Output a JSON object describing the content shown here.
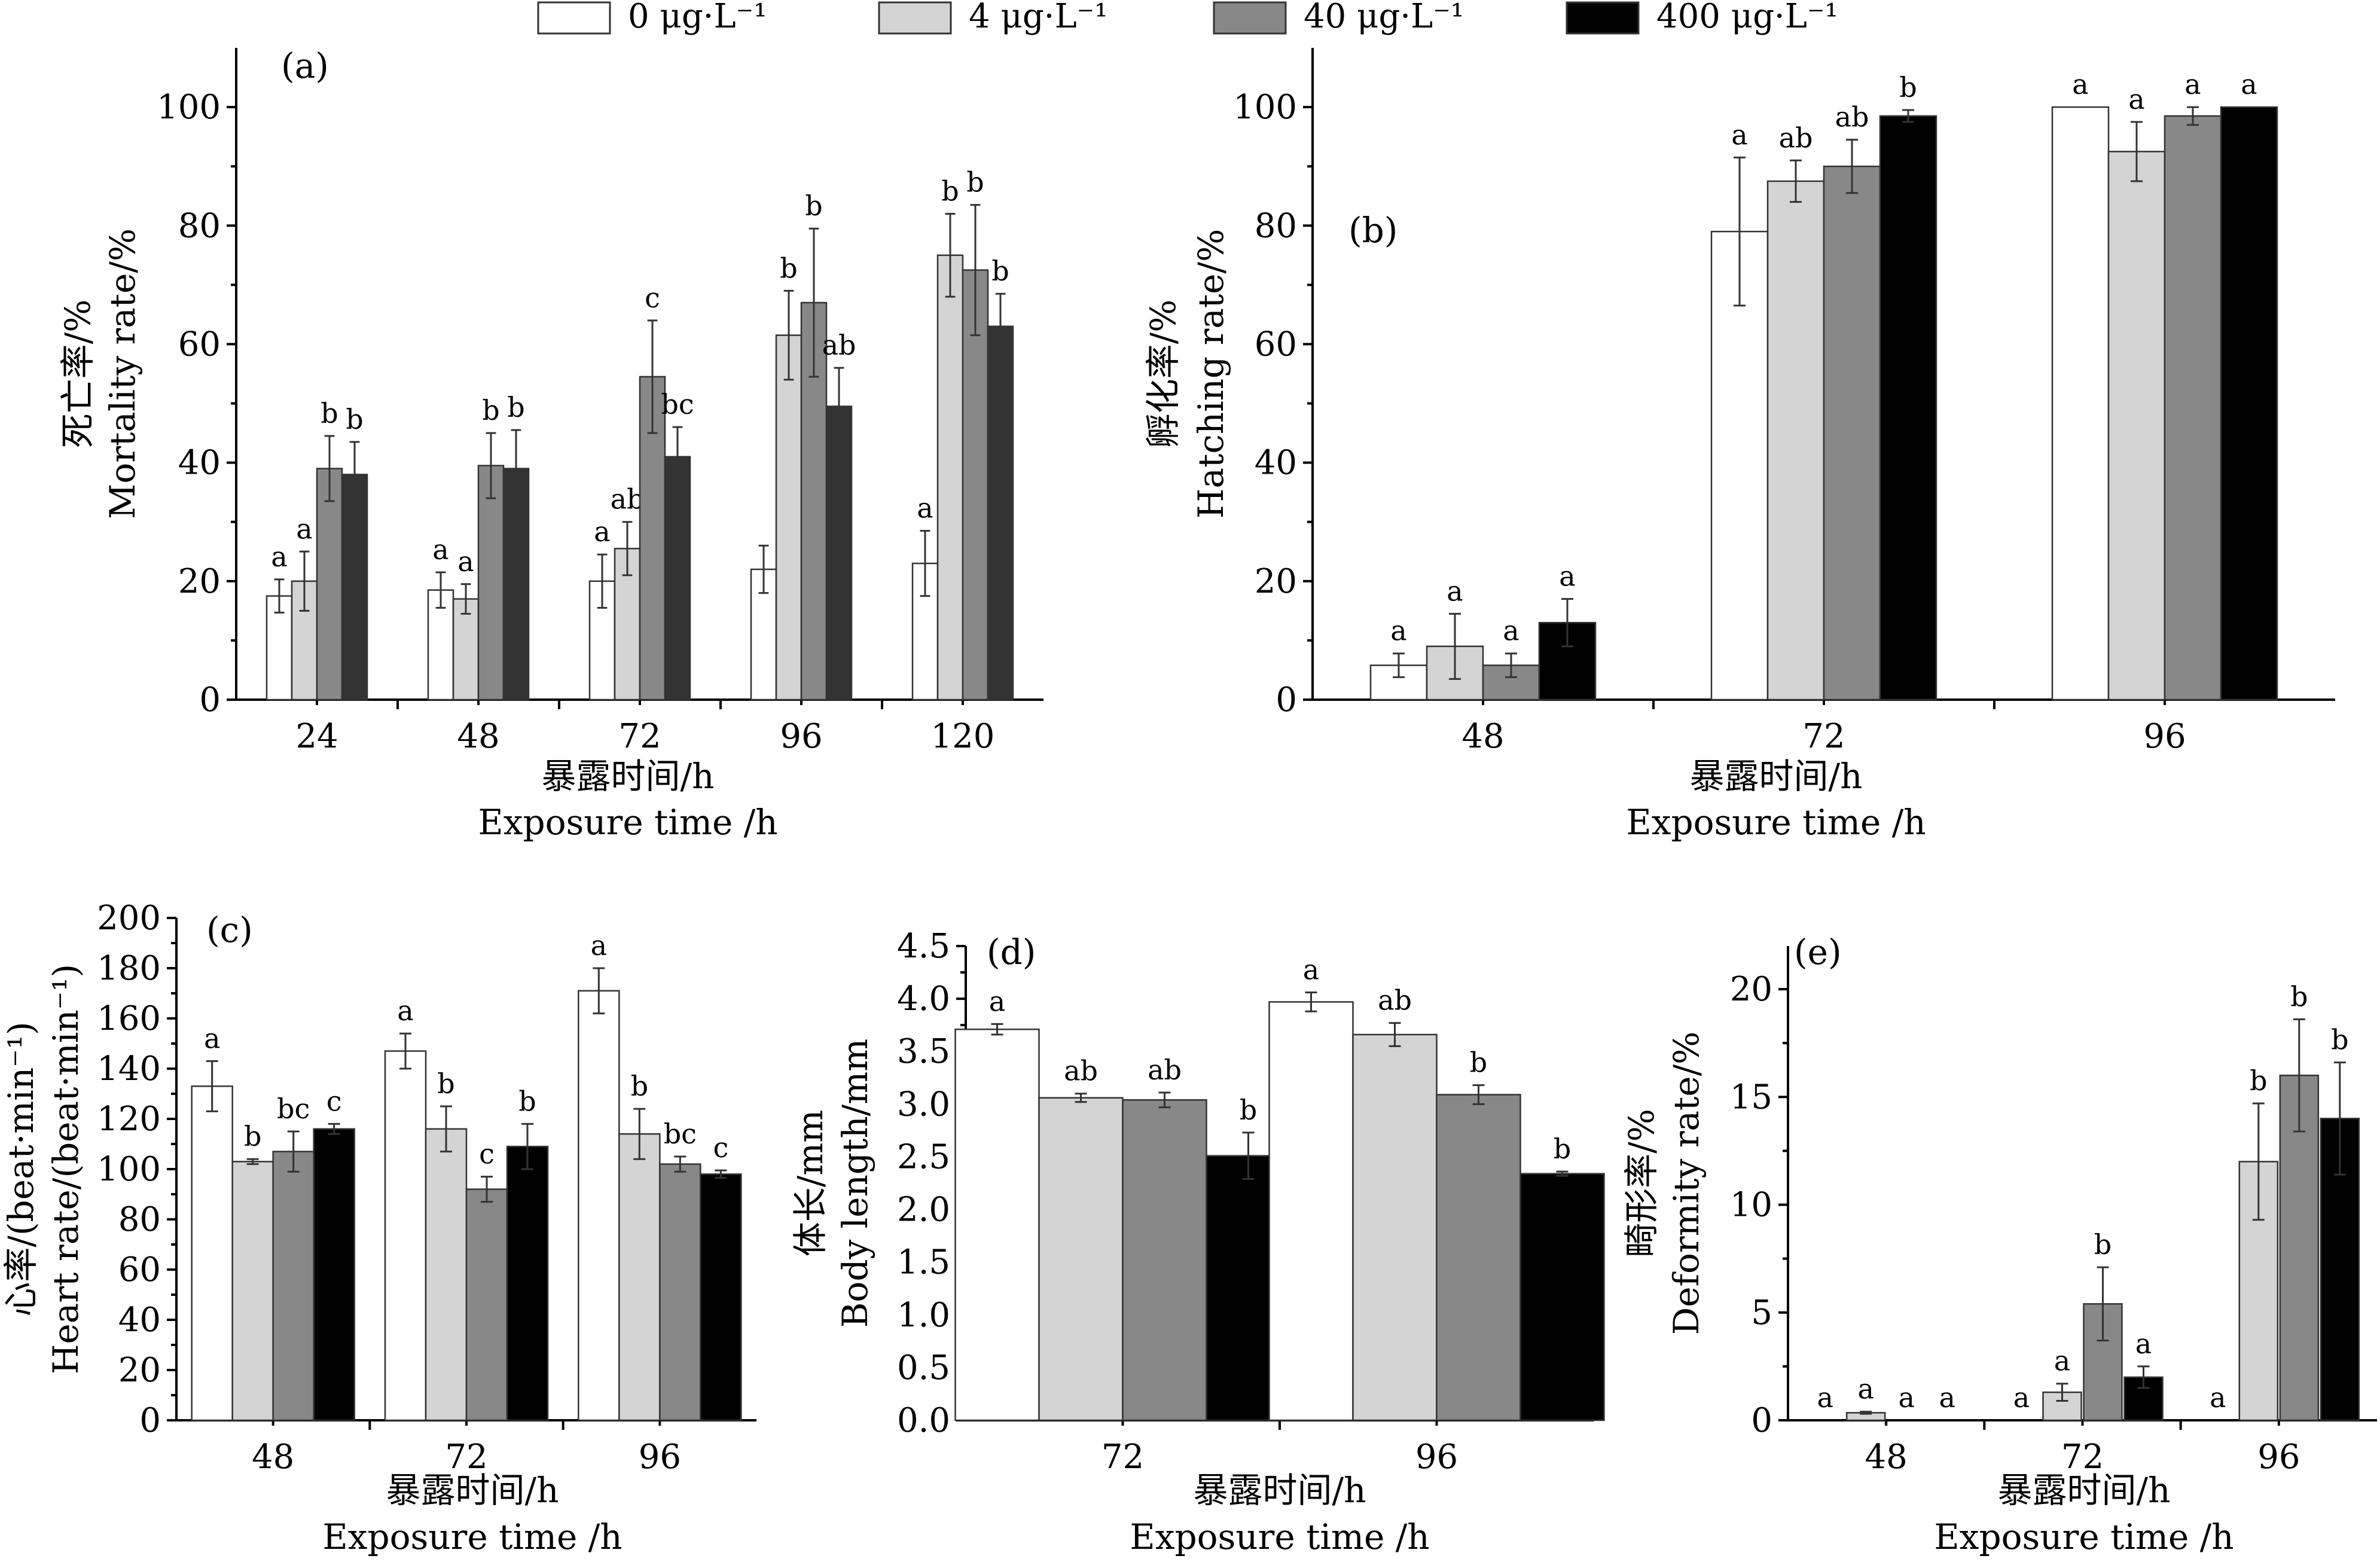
{
  "legend": {
    "entries": [
      {
        "label": "0 μg·L⁻¹",
        "color": "#ffffff"
      },
      {
        "label": "4 μg·L⁻¹",
        "color": "#d4d4d4"
      },
      {
        "label": "40 μg·L⁻¹",
        "color": "#888888"
      },
      {
        "label": "400 μg·L⁻¹",
        "color": "#000000"
      }
    ]
  },
  "chart_data": [
    {
      "panel": "(a)",
      "type": "bar",
      "title": "",
      "xlabel": [
        "暴露时间/h",
        "Exposure time /h"
      ],
      "ylabel": [
        "死亡率/%",
        "Mortality rate/%"
      ],
      "ylim": [
        0,
        110
      ],
      "yticks": [
        "0",
        "20",
        "40",
        "60",
        "80",
        "100"
      ],
      "categories": [
        "24",
        "48",
        "72",
        "96",
        "120"
      ],
      "colors": [
        "#ffffff",
        "#d4d4d4",
        "#888888",
        "#333333"
      ],
      "series": [
        {
          "values": [
            17.5,
            18.5,
            20,
            22,
            23
          ],
          "errors": [
            2.8,
            3,
            4.5,
            4,
            5.5
          ],
          "labels": [
            "a",
            "a",
            "a",
            "",
            "a"
          ]
        },
        {
          "values": [
            20,
            17,
            25.5,
            61.5,
            75
          ],
          "errors": [
            5,
            2.5,
            4.5,
            7.5,
            7
          ],
          "labels": [
            "a",
            "a",
            "ab",
            "b",
            "b"
          ]
        },
        {
          "values": [
            39,
            39.5,
            54.5,
            67,
            72.5
          ],
          "errors": [
            5.5,
            5.5,
            9.5,
            12.5,
            11
          ],
          "labels": [
            "b",
            "b",
            "c",
            "b",
            "b"
          ]
        },
        {
          "values": [
            38,
            39,
            41,
            49.5,
            63
          ],
          "errors": [
            5.5,
            6.5,
            5,
            6.5,
            5.5
          ],
          "labels": [
            "b",
            "b",
            "bc",
            "ab",
            "b"
          ]
        }
      ]
    },
    {
      "panel": "(b)",
      "type": "bar",
      "title": "",
      "xlabel": [
        "暴露时间/h",
        "Exposure time /h"
      ],
      "ylabel": [
        "孵化率/%",
        "Hatching rate/%"
      ],
      "ylim": [
        0,
        110
      ],
      "yticks": [
        "0",
        "20",
        "40",
        "60",
        "80",
        "100"
      ],
      "categories": [
        "48",
        "72",
        "96"
      ],
      "colors": [
        "#ffffff",
        "#d4d4d4",
        "#888888",
        "#000000"
      ],
      "series": [
        {
          "values": [
            5.8,
            79,
            100
          ],
          "errors": [
            2,
            12.5,
            0
          ],
          "labels": [
            "a",
            "a",
            "a"
          ]
        },
        {
          "values": [
            9,
            87.5,
            92.5
          ],
          "errors": [
            5.5,
            3.5,
            5
          ],
          "labels": [
            "a",
            "ab",
            "a"
          ]
        },
        {
          "values": [
            5.8,
            90,
            98.5
          ],
          "errors": [
            2,
            4.5,
            1.5
          ],
          "labels": [
            "a",
            "ab",
            "a"
          ]
        },
        {
          "values": [
            13,
            98.5,
            100
          ],
          "errors": [
            4,
            1,
            0
          ],
          "labels": [
            "a",
            "b",
            "a"
          ]
        }
      ]
    },
    {
      "panel": "(c)",
      "type": "bar",
      "title": "",
      "xlabel": [
        "暴露时间/h",
        "Exposure time /h"
      ],
      "ylabel": [
        "心率/(beat·min⁻¹)",
        "Heart rate/(beat·min⁻¹)"
      ],
      "ylim": [
        0,
        200
      ],
      "yticks": [
        "0",
        "20",
        "40",
        "60",
        "80",
        "100",
        "120",
        "140",
        "160",
        "180",
        "200"
      ],
      "categories": [
        "48",
        "72",
        "96"
      ],
      "colors": [
        "#ffffff",
        "#d4d4d4",
        "#888888",
        "#000000"
      ],
      "series": [
        {
          "values": [
            133,
            147,
            171
          ],
          "errors": [
            10,
            7,
            9
          ],
          "labels": [
            "a",
            "a",
            "a"
          ]
        },
        {
          "values": [
            103,
            116,
            114
          ],
          "errors": [
            1,
            9,
            10
          ],
          "labels": [
            "b",
            "b",
            "b"
          ]
        },
        {
          "values": [
            107,
            92,
            102
          ],
          "errors": [
            8,
            5,
            3
          ],
          "labels": [
            "bc",
            "c",
            "bc"
          ]
        },
        {
          "values": [
            116,
            109,
            98
          ],
          "errors": [
            2,
            9,
            1.5
          ],
          "labels": [
            "c",
            "b",
            "c"
          ]
        }
      ]
    },
    {
      "panel": "(d)",
      "type": "bar",
      "title": "",
      "xlabel": [
        "暴露时间/h",
        "Exposure time /h"
      ],
      "ylabel": [
        "体长/mm",
        "Body length/mm"
      ],
      "ylim": [
        0,
        4.5
      ],
      "yticks": [
        "0.0",
        "0.5",
        "1.0",
        "1.5",
        "2.0",
        "2.5",
        "3.0",
        "3.5",
        "4.0",
        "4.5"
      ],
      "categories": [
        "72",
        "96"
      ],
      "colors": [
        "#ffffff",
        "#d4d4d4",
        "#888888",
        "#000000"
      ],
      "series": [
        {
          "values": [
            3.71,
            3.97
          ],
          "errors": [
            0.05,
            0.09
          ],
          "labels": [
            "a",
            "a"
          ]
        },
        {
          "values": [
            3.06,
            3.66
          ],
          "errors": [
            0.04,
            0.11
          ],
          "labels": [
            "ab",
            "ab"
          ]
        },
        {
          "values": [
            3.04,
            3.09
          ],
          "errors": [
            0.07,
            0.09
          ],
          "labels": [
            "ab",
            "b"
          ]
        },
        {
          "values": [
            2.51,
            2.34
          ],
          "errors": [
            0.22,
            0.02
          ],
          "labels": [
            "b",
            "b"
          ]
        }
      ]
    },
    {
      "panel": "(e)",
      "type": "bar",
      "title": "",
      "xlabel": [
        "暴露时间/h",
        "Exposure time /h"
      ],
      "ylabel": [
        "畸形率/%",
        "Deformity rate/%"
      ],
      "ylim": [
        0,
        22
      ],
      "yticks": [
        "0",
        "5",
        "10",
        "15",
        "20"
      ],
      "categories": [
        "48",
        "72",
        "96"
      ],
      "colors": [
        "#ffffff",
        "#d4d4d4",
        "#888888",
        "#000000"
      ],
      "series": [
        {
          "values": [
            0,
            0,
            0
          ],
          "errors": [
            0,
            0,
            0
          ],
          "labels": [
            "a",
            "a",
            "a"
          ]
        },
        {
          "values": [
            0.35,
            1.3,
            12
          ],
          "errors": [
            0.05,
            0.4,
            2.7
          ],
          "labels": [
            "a",
            "a",
            "b"
          ]
        },
        {
          "values": [
            0,
            5.4,
            16
          ],
          "errors": [
            0,
            1.7,
            2.6
          ],
          "labels": [
            "a",
            "b",
            "b"
          ]
        },
        {
          "values": [
            0,
            2,
            14
          ],
          "errors": [
            0,
            0.5,
            2.6
          ],
          "labels": [
            "a",
            "a",
            "b"
          ]
        }
      ]
    }
  ]
}
